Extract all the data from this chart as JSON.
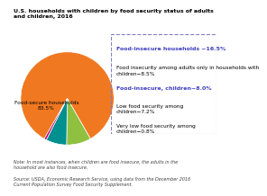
{
  "title": "U.S. households with children by food security status of adults\nand children, 2016",
  "slices": [
    {
      "label": "Food-secure households\n83.5%",
      "value": 83.5,
      "color": "#F07820",
      "text_color": "#000000"
    },
    {
      "label": "Food insecurity among adults only in households with\nchildren—8.5%",
      "value": 8.5,
      "color": "#90C040",
      "text_color": "#000000"
    },
    {
      "label": "Food-insecure, children—8.0%",
      "value": 8.0,
      "color": "#008080",
      "text_color": "#4040C0"
    },
    {
      "label": "Low food security among\nchildren—7.2%",
      "value": 7.2,
      "color": "#008080",
      "text_color": "#000000"
    },
    {
      "label": "Very low food security among\nchildren—0.8%",
      "value": 0.8,
      "color": "#C0006C",
      "text_color": "#000000"
    }
  ],
  "pie_colors": [
    "#F07820",
    "#90C040",
    "#008080",
    "#C06000",
    "#C0006C"
  ],
  "legend_labels": [
    "Food-insecure households −16.5%",
    "Food insecurity among adults only in households with\nchildren−8.5%",
    "Food-insecure, children−8.0%",
    "Low food security among\nchildren−7.2%",
    "Very low food security among\nchildren−0.8%"
  ],
  "note": "Note: In most instances, when children are food insecure, the adults in the\nhousehold are also food insecure.",
  "source": "Source: USDA, Economic Research Service, using data from the December 2016\nCurrent Population Survey Food Security Supplement.",
  "background_color": "#FFFFFF"
}
